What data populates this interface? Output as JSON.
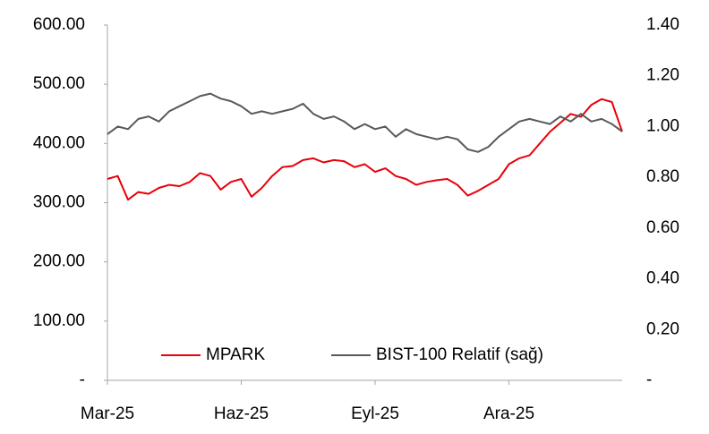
{
  "chart_data": {
    "type": "line",
    "categories": [
      "Mar-25",
      null,
      null,
      null,
      null,
      null,
      null,
      null,
      null,
      null,
      null,
      null,
      null,
      "Haz-25",
      null,
      null,
      null,
      null,
      null,
      null,
      null,
      null,
      null,
      null,
      null,
      null,
      "Eyl-25",
      null,
      null,
      null,
      null,
      null,
      null,
      null,
      null,
      null,
      null,
      null,
      null,
      "Ara-25",
      null,
      null,
      null,
      null,
      null,
      null,
      null,
      null,
      null,
      null,
      null
    ],
    "series": [
      {
        "name": "MPARK",
        "color": "#e8000b",
        "values": [
          340,
          345,
          305,
          318,
          315,
          325,
          330,
          328,
          335,
          350,
          345,
          322,
          335,
          340,
          310,
          325,
          345,
          360,
          362,
          372,
          375,
          368,
          372,
          370,
          360,
          365,
          352,
          358,
          345,
          340,
          330,
          335,
          338,
          340,
          330,
          312,
          320,
          330,
          340,
          365,
          375,
          380,
          400,
          420,
          435,
          450,
          445,
          465,
          475,
          470,
          420
        ]
      },
      {
        "name": "BIST-100 Relatif (sağ)",
        "color": "#595959",
        "axis": "y2",
        "values": [
          0.97,
          1.0,
          0.99,
          1.03,
          1.04,
          1.02,
          1.06,
          1.08,
          1.1,
          1.12,
          1.13,
          1.11,
          1.1,
          1.08,
          1.05,
          1.06,
          1.05,
          1.06,
          1.07,
          1.09,
          1.05,
          1.03,
          1.04,
          1.02,
          0.99,
          1.01,
          0.99,
          1.0,
          0.96,
          0.99,
          0.97,
          0.96,
          0.95,
          0.96,
          0.95,
          0.91,
          0.9,
          0.92,
          0.96,
          0.99,
          1.02,
          1.03,
          1.02,
          1.01,
          1.04,
          1.02,
          1.05,
          1.02,
          1.03,
          1.01,
          0.98
        ]
      }
    ],
    "ylim": [
      0,
      600
    ],
    "yticks": [
      {
        "value": 0,
        "label": "-"
      },
      {
        "value": 100,
        "label": "100.00"
      },
      {
        "value": 200,
        "label": "200.00"
      },
      {
        "value": 300,
        "label": "300.00"
      },
      {
        "value": 400,
        "label": "400.00"
      },
      {
        "value": 500,
        "label": "500.00"
      },
      {
        "value": 600,
        "label": "600.00"
      }
    ],
    "y2lim": [
      0,
      1.4
    ],
    "y2ticks": [
      {
        "value": 0,
        "label": "-"
      },
      {
        "value": 0.2,
        "label": "0.20"
      },
      {
        "value": 0.4,
        "label": "0.40"
      },
      {
        "value": 0.6,
        "label": "0.60"
      },
      {
        "value": 0.8,
        "label": "0.80"
      },
      {
        "value": 1.0,
        "label": "1.00"
      },
      {
        "value": 1.2,
        "label": "1.20"
      },
      {
        "value": 1.4,
        "label": "1.40"
      }
    ],
    "grid": false,
    "legend": "lower center"
  }
}
